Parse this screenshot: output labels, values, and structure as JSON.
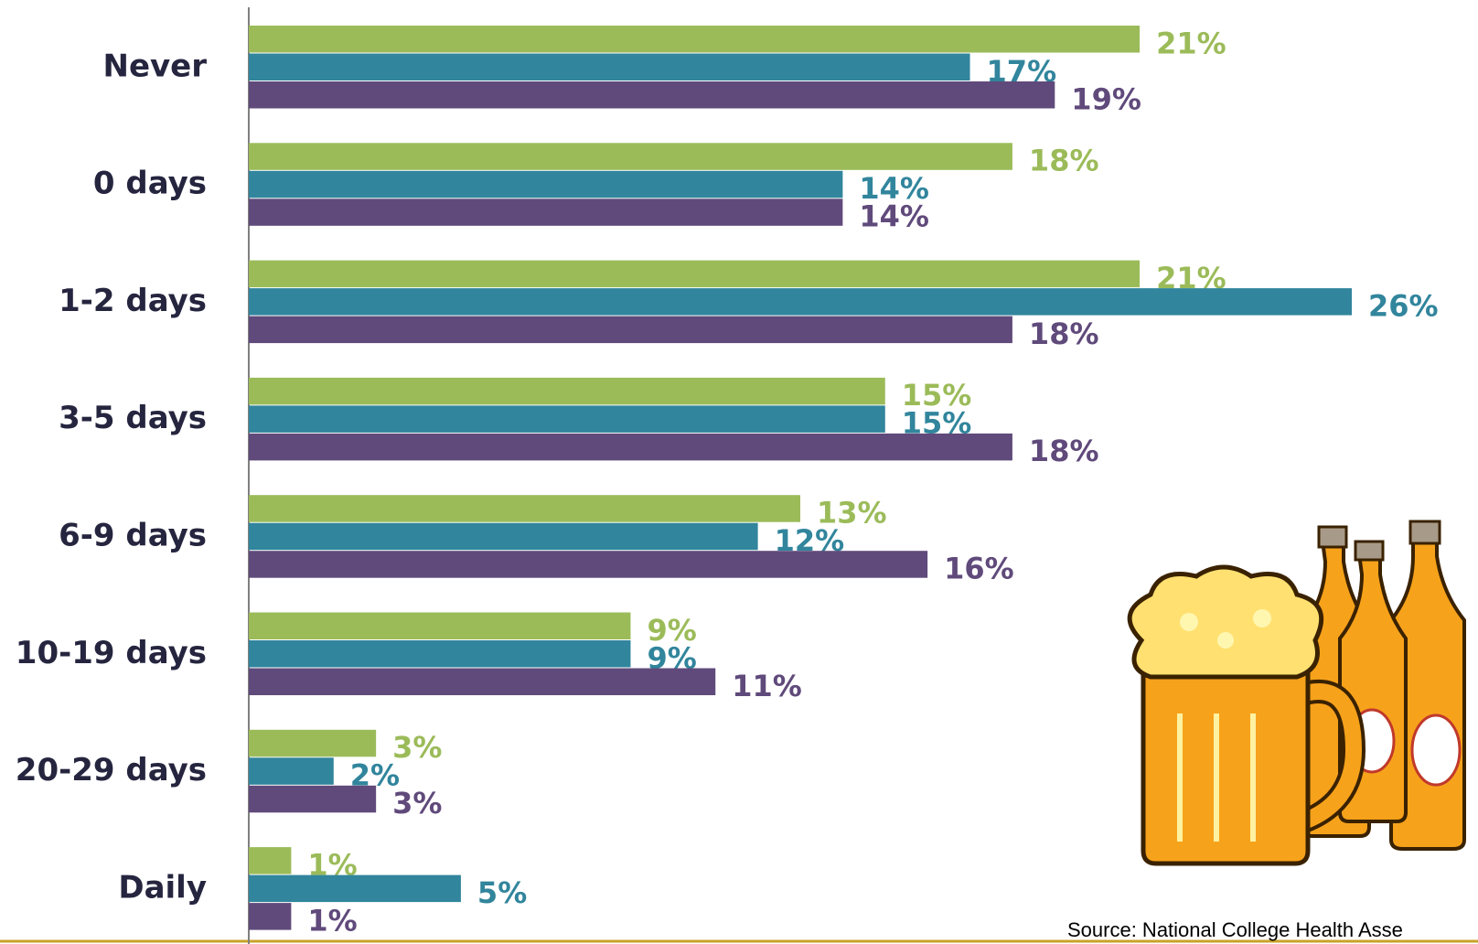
{
  "chart_data": {
    "type": "bar",
    "orientation": "horizontal",
    "categories": [
      "Never",
      "0 days",
      "1-2 days",
      "3-5 days",
      "6-9 days",
      "10-19 days",
      "20-29 days",
      "Daily"
    ],
    "series": [
      {
        "color": "#9bbb59",
        "values": [
          21,
          18,
          21,
          15,
          13,
          9,
          3,
          1
        ],
        "value_labels": [
          "21%",
          "18%",
          "21%",
          "15%",
          "13%",
          "9%",
          "3%",
          "1%"
        ]
      },
      {
        "color": "#31859c",
        "values": [
          17,
          14,
          26,
          15,
          12,
          9,
          2,
          5
        ],
        "value_labels": [
          "17%",
          "14%",
          "26%",
          "15%",
          "12%",
          "9%",
          "2%",
          "5%"
        ]
      },
      {
        "color": "#604a7b",
        "values": [
          19,
          14,
          18,
          18,
          16,
          11,
          3,
          1
        ],
        "value_labels": [
          "19%",
          "14%",
          "18%",
          "18%",
          "16%",
          "11%",
          "3%",
          "1%"
        ]
      }
    ],
    "source": "Source:  National College Health Asse"
  }
}
